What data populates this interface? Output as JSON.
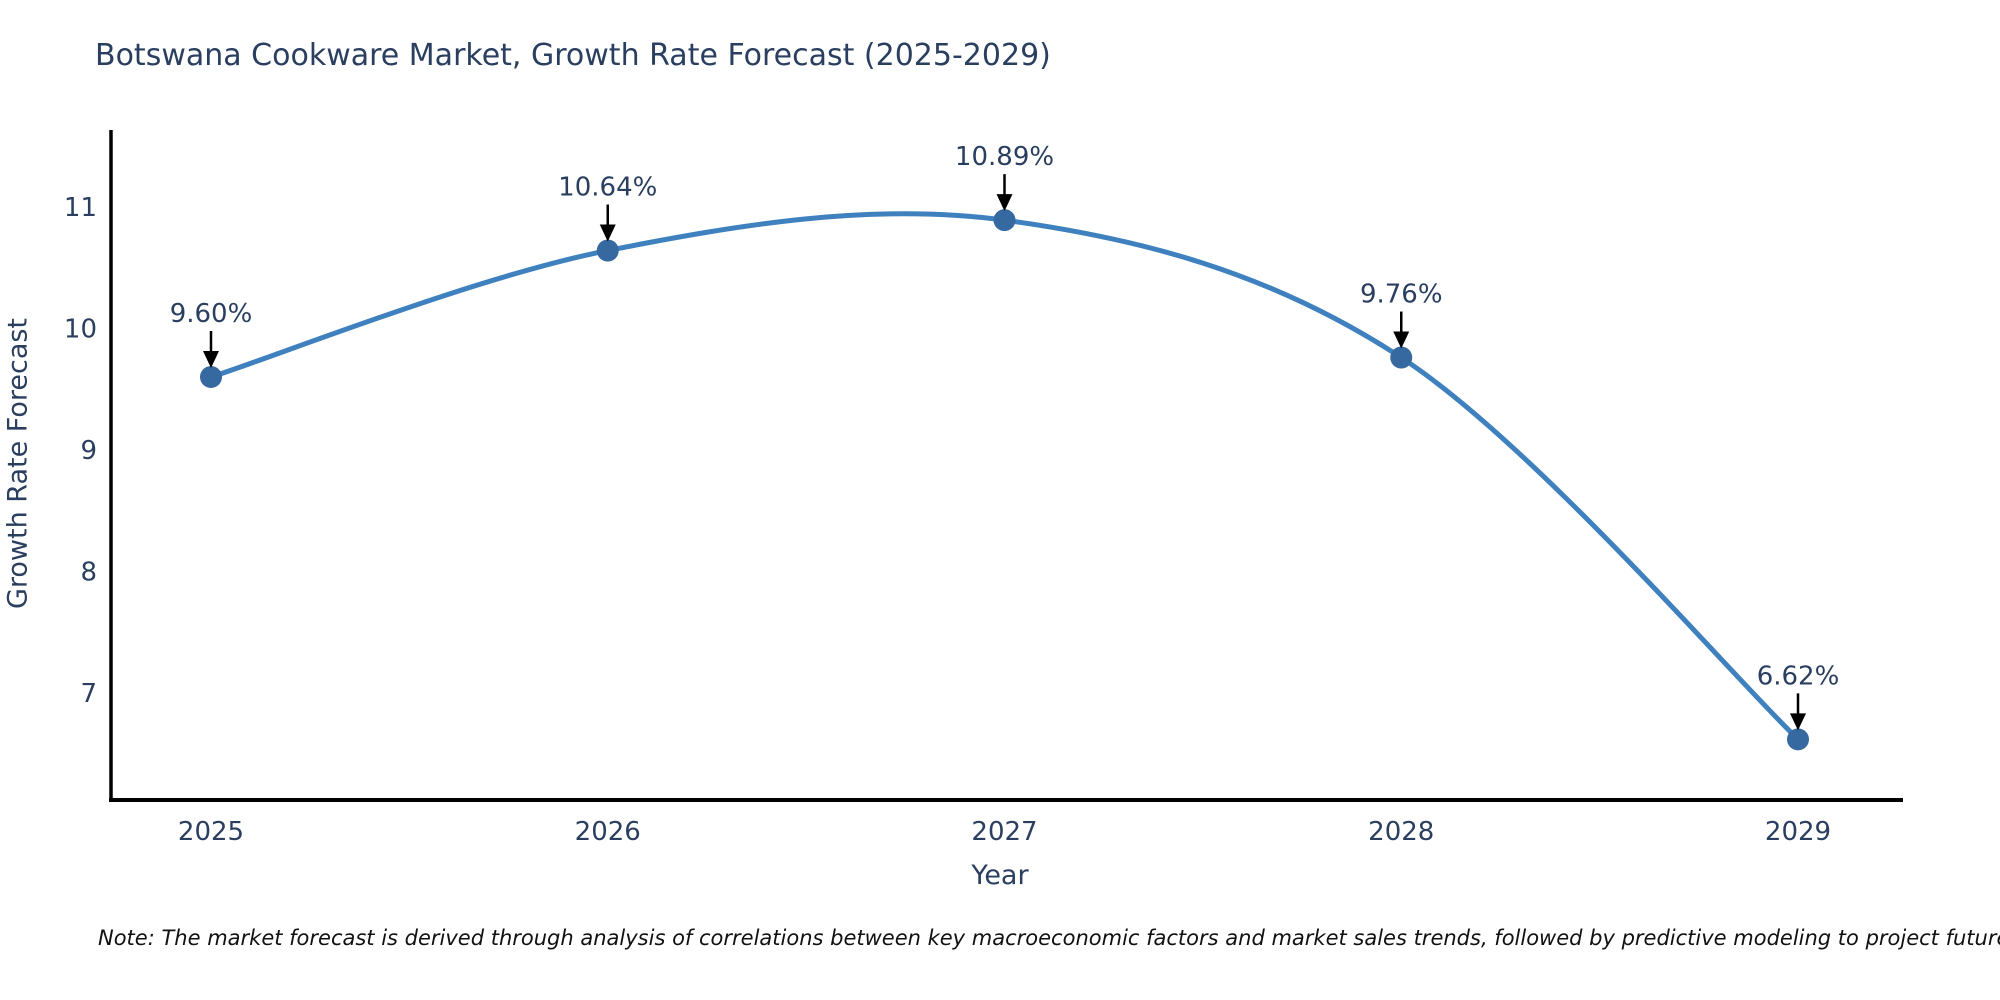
{
  "title": "Botswana Cookware Market, Growth Rate Forecast (2025-2029)",
  "note": "Note: The market forecast is derived through analysis of correlations between key macroeconomic factors and market sales trends, followed by predictive modeling to project future sales",
  "chart_data": {
    "type": "line",
    "title": "Botswana Cookware Market, Growth Rate Forecast (2025-2029)",
    "xlabel": "Year",
    "ylabel": "Growth Rate Forecast",
    "x": [
      2025,
      2026,
      2027,
      2028,
      2029
    ],
    "values": [
      9.6,
      10.64,
      10.89,
      9.76,
      6.62
    ],
    "point_labels": [
      "9.60%",
      "10.64%",
      "10.89%",
      "9.76%",
      "6.62%"
    ],
    "yticks": [
      7,
      8,
      9,
      10,
      11
    ],
    "xticks": [
      2025,
      2026,
      2027,
      2028,
      2029
    ],
    "xlim": [
      2024.75,
      2029.27
    ],
    "ylim": [
      6.12,
      11.63
    ],
    "line_shape": "spline",
    "grid": false,
    "legend": false,
    "annotations": "value labels above each point with downward black arrows",
    "colors": {
      "line": "#3f81be",
      "marker": "#35699f",
      "axis": "#000000",
      "text": "#2a3f5f",
      "arrow": "#000000",
      "background": "#ffffff"
    }
  }
}
